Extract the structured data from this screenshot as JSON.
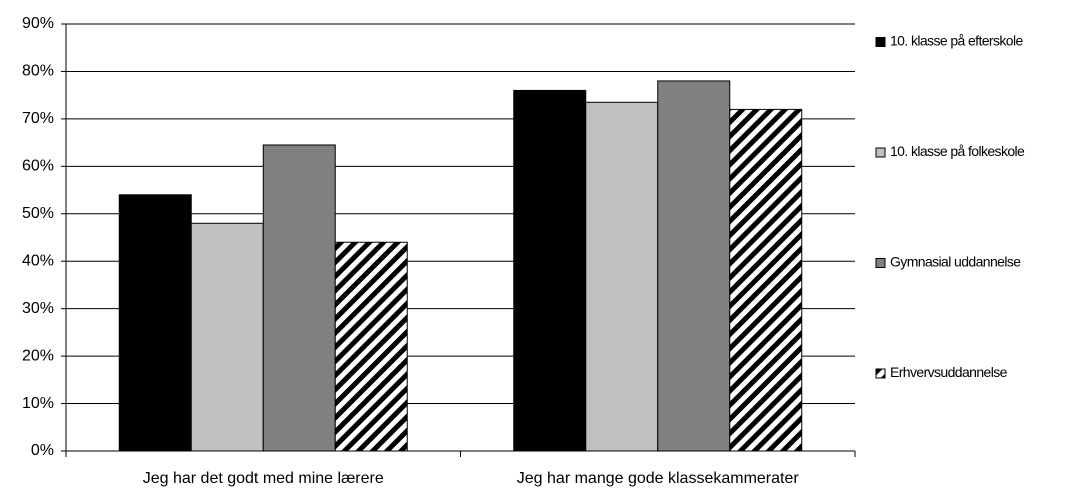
{
  "chart_data": {
    "type": "bar",
    "categories": [
      "Jeg har det godt med mine lærere",
      "Jeg har mange gode klassekammerater"
    ],
    "series": [
      {
        "name": "10. klasse på efterskole",
        "color": "#000000",
        "values": [
          54,
          76
        ]
      },
      {
        "name": "10. klasse på folkeskole",
        "color": "#c0c0c0",
        "values": [
          48,
          73.5
        ]
      },
      {
        "name": "Gymnasial uddannelse",
        "color": "#808080",
        "values": [
          64.5,
          78
        ]
      },
      {
        "name": "Erhvervsuddannelse",
        "color": "#000000",
        "pattern": "diagonal-stripes",
        "values": [
          44,
          72
        ]
      }
    ],
    "ylim": [
      0,
      90
    ],
    "yticks": [
      {
        "value": 0,
        "label": "0%"
      },
      {
        "value": 10,
        "label": "10%"
      },
      {
        "value": 20,
        "label": "20%"
      },
      {
        "value": 30,
        "label": "30%"
      },
      {
        "value": 40,
        "label": "40%"
      },
      {
        "value": 50,
        "label": "50%"
      },
      {
        "value": 60,
        "label": "60%"
      },
      {
        "value": 70,
        "label": "70%"
      },
      {
        "value": 80,
        "label": "80%"
      },
      {
        "value": 90,
        "label": "90%"
      }
    ],
    "grid": true,
    "legend": "right"
  }
}
